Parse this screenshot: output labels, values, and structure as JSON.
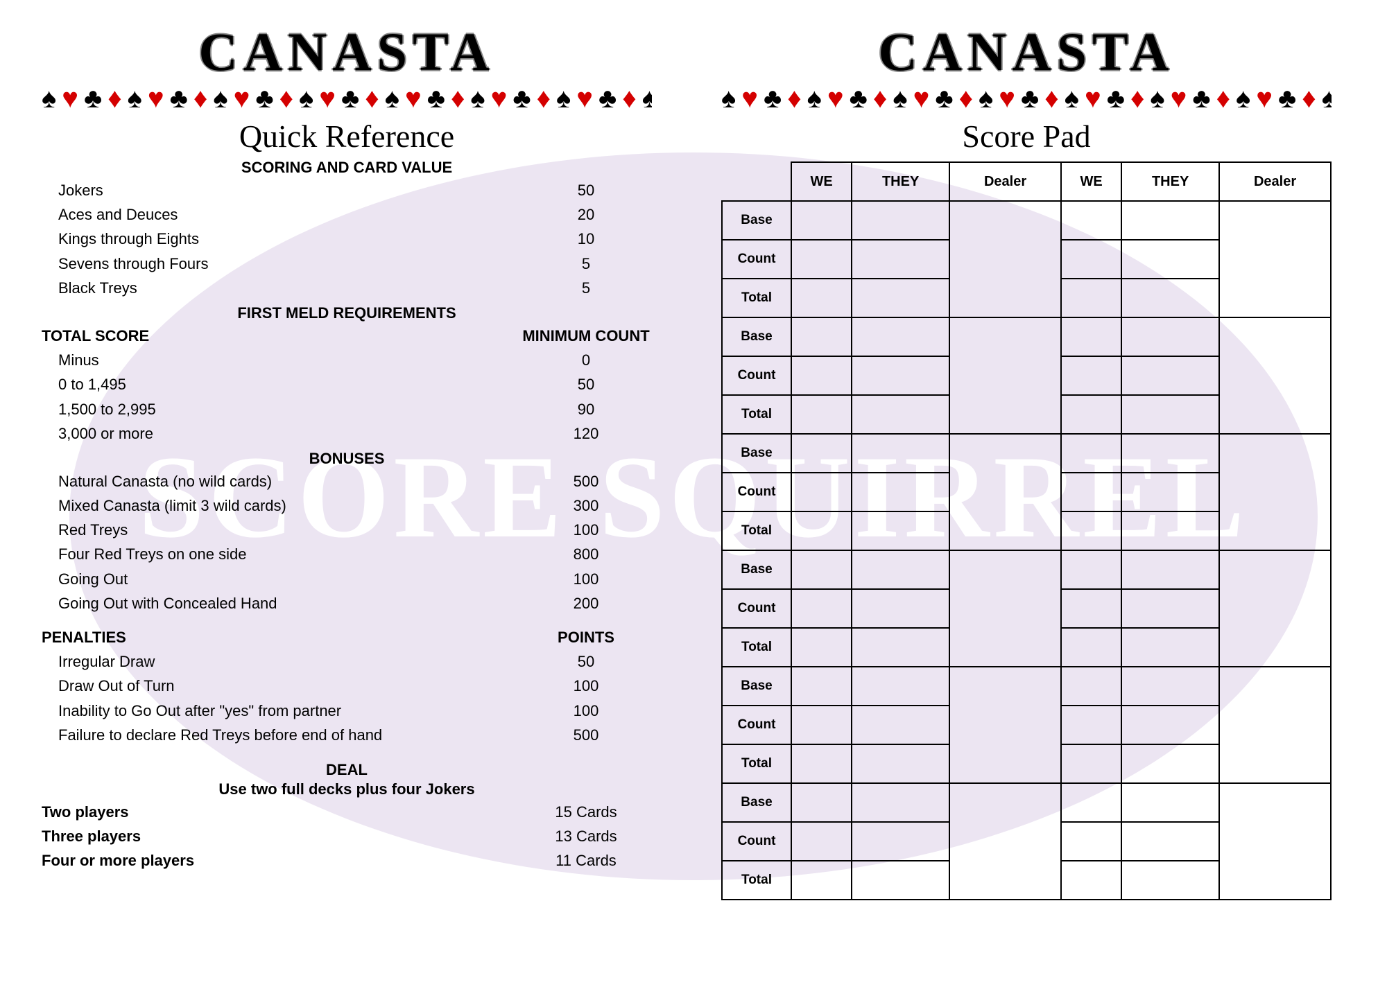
{
  "watermark": "SCORE SQUIRREL",
  "colors": {
    "suit_black": "#000000",
    "suit_red": "#d40000",
    "bg_ellipse": "#ece5f2",
    "border": "#000000",
    "text": "#000000"
  },
  "suits": [
    "♠",
    "♥",
    "♣",
    "♦"
  ],
  "suit_repeat": 10,
  "left": {
    "title": "CANASTA",
    "subtitle": "Quick Reference",
    "sections": {
      "scoring": {
        "header": "SCORING AND CARD VALUE",
        "rows": [
          {
            "label": "Jokers",
            "value": "50"
          },
          {
            "label": "Aces and Deuces",
            "value": "20"
          },
          {
            "label": "Kings through Eights",
            "value": "10"
          },
          {
            "label": "Sevens through Fours",
            "value": "5"
          },
          {
            "label": "Black Treys",
            "value": "5"
          }
        ]
      },
      "meld": {
        "header": "FIRST MELD REQUIREMENTS",
        "col1": "TOTAL SCORE",
        "col2": "MINIMUM COUNT",
        "rows": [
          {
            "label": "Minus",
            "value": "0"
          },
          {
            "label": "0 to 1,495",
            "value": "50"
          },
          {
            "label": "1,500 to 2,995",
            "value": "90"
          },
          {
            "label": "3,000 or more",
            "value": "120"
          }
        ]
      },
      "bonuses": {
        "header": "BONUSES",
        "rows": [
          {
            "label": "Natural Canasta (no wild cards)",
            "value": "500"
          },
          {
            "label": "Mixed Canasta (limit 3 wild cards)",
            "value": "300"
          },
          {
            "label": "Red Treys",
            "value": "100"
          },
          {
            "label": "Four Red Treys on one side",
            "value": "800"
          },
          {
            "label": "Going Out",
            "value": "100"
          },
          {
            "label": "Going Out with Concealed Hand",
            "value": "200"
          }
        ]
      },
      "penalties": {
        "col1": "PENALTIES",
        "col2": "POINTS",
        "rows": [
          {
            "label": "Irregular Draw",
            "value": "50"
          },
          {
            "label": "Draw Out of Turn",
            "value": "100"
          },
          {
            "label": "Inability to Go Out after \"yes\" from partner",
            "value": "100"
          },
          {
            "label": "Failure to declare Red Treys before end of hand",
            "value": "500"
          }
        ]
      },
      "deal": {
        "header": "DEAL",
        "note": "Use two full decks plus four Jokers",
        "rows": [
          {
            "label": "Two players",
            "value": "15 Cards"
          },
          {
            "label": "Three players",
            "value": "13 Cards"
          },
          {
            "label": "Four or more players",
            "value": "11 Cards"
          }
        ]
      }
    }
  },
  "right": {
    "title": "CANASTA",
    "subtitle": "Score Pad",
    "columns": [
      "WE",
      "THEY",
      "Dealer",
      "WE",
      "THEY",
      "Dealer"
    ],
    "row_labels": [
      "Base",
      "Count",
      "Total"
    ],
    "round_count": 6
  }
}
